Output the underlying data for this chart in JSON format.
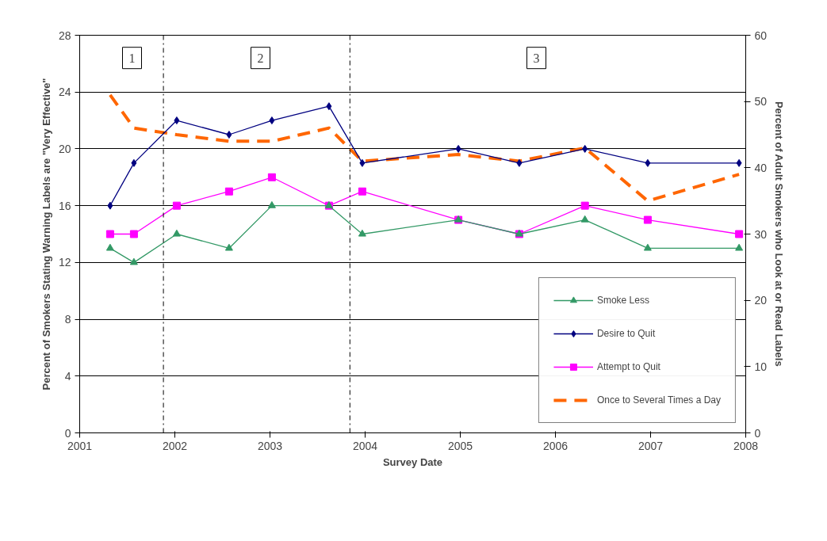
{
  "chart_data": {
    "type": "line",
    "xlabel": "Survey Date",
    "ylabel": "Percent of Smokers Stating Warning Labels are \"Very Effective\"",
    "y2label": "Percent of Adult Smokers who Look at or Read Labels",
    "x": [
      2001.32,
      2001.57,
      2002.02,
      2002.57,
      2003.02,
      2003.62,
      2003.97,
      2004.98,
      2005.62,
      2006.31,
      2006.97,
      2007.93
    ],
    "series": [
      {
        "name": "Smoke Less",
        "color": "#339966",
        "marker": "triangle",
        "values": [
          13,
          12,
          14,
          13,
          16,
          16,
          14,
          15,
          14,
          15,
          13,
          13
        ]
      },
      {
        "name": "Desire to Quit",
        "color": "#000080",
        "marker": "diamond",
        "values": [
          16,
          19,
          22,
          21,
          22,
          23,
          19,
          20,
          19,
          20,
          19,
          19
        ]
      },
      {
        "name": "Attempt to Quit",
        "color": "#ff00ff",
        "marker": "square",
        "values": [
          14,
          14,
          16,
          17,
          18,
          16,
          17,
          15,
          14,
          16,
          15,
          14
        ]
      },
      {
        "name": "Once to Several Times a Day",
        "color": "#ff6600",
        "marker": "none",
        "line_style": "dashed",
        "axis": "y2",
        "values": [
          51,
          46,
          45,
          44,
          44,
          46,
          41,
          42,
          41,
          43,
          35,
          39
        ]
      }
    ],
    "xlim": [
      2001,
      2008
    ],
    "xticks": [
      2001,
      2002,
      2003,
      2004,
      2005,
      2006,
      2007,
      2008
    ],
    "ylim": [
      0,
      28
    ],
    "yticks": [
      0,
      4,
      8,
      12,
      16,
      20,
      24,
      28
    ],
    "y2lim": [
      0,
      60
    ],
    "y2ticks": [
      0,
      10,
      20,
      30,
      40,
      50,
      60
    ],
    "ref_lines": [
      {
        "axis": "x",
        "value": 2001.88,
        "line_style": "dashed"
      },
      {
        "axis": "x",
        "value": 2003.84,
        "line_style": "dashed"
      }
    ],
    "annotations": [
      {
        "text": "1",
        "x": 2001.55,
        "y": 26.4
      },
      {
        "text": "2",
        "x": 2002.9,
        "y": 26.4
      },
      {
        "text": "3",
        "x": 2005.8,
        "y": 26.4
      }
    ],
    "grid": "y",
    "legend": "bottom right"
  }
}
